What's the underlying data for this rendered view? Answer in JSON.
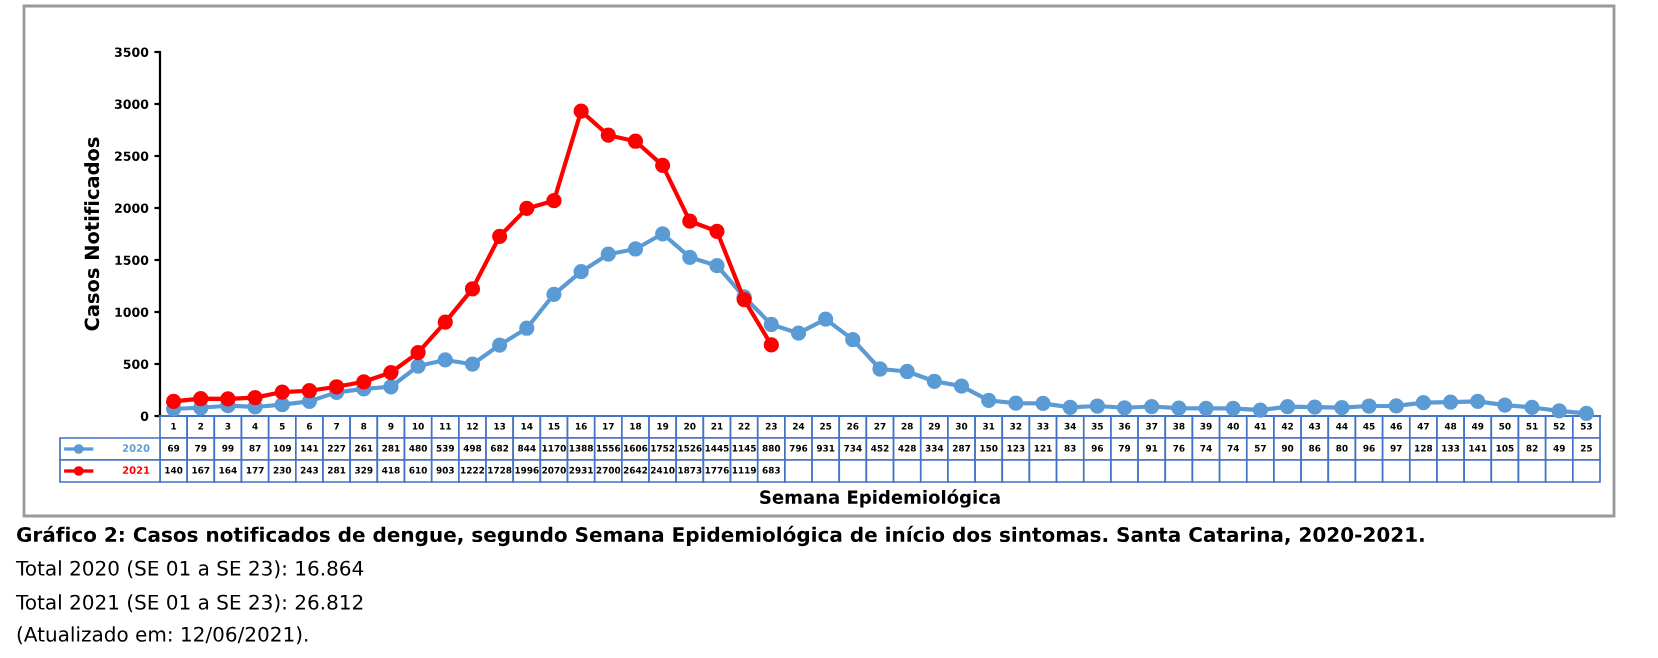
{
  "chart_data": {
    "type": "line",
    "xlabel": "Semana Epidemiológica",
    "ylabel": "Casos Notificados",
    "categories": [
      "1",
      "2",
      "3",
      "4",
      "5",
      "6",
      "7",
      "8",
      "9",
      "10",
      "11",
      "12",
      "13",
      "14",
      "15",
      "16",
      "17",
      "18",
      "19",
      "20",
      "21",
      "22",
      "23",
      "24",
      "25",
      "26",
      "27",
      "28",
      "29",
      "30",
      "31",
      "32",
      "33",
      "34",
      "35",
      "36",
      "37",
      "38",
      "39",
      "40",
      "41",
      "42",
      "43",
      "44",
      "45",
      "46",
      "47",
      "48",
      "49",
      "50",
      "51",
      "52",
      "53"
    ],
    "series": [
      {
        "name": "2020",
        "color": "#5b9bd5",
        "values": [
          69,
          79,
          99,
          87,
          109,
          141,
          227,
          261,
          281,
          480,
          539,
          498,
          682,
          844,
          1170,
          1388,
          1556,
          1606,
          1752,
          1526,
          1445,
          1145,
          880,
          796,
          931,
          734,
          452,
          428,
          334,
          287,
          150,
          123,
          121,
          83,
          96,
          79,
          91,
          76,
          74,
          74,
          57,
          90,
          86,
          80,
          96,
          97,
          128,
          133,
          141,
          105,
          82,
          49,
          25
        ]
      },
      {
        "name": "2021",
        "color": "#ff0000",
        "values": [
          140,
          167,
          164,
          177,
          230,
          243,
          281,
          329,
          418,
          610,
          903,
          1222,
          1728,
          1996,
          2070,
          2931,
          2700,
          2642,
          2410,
          1873,
          1776,
          1119,
          683,
          null,
          null,
          null,
          null,
          null,
          null,
          null,
          null,
          null,
          null,
          null,
          null,
          null,
          null,
          null,
          null,
          null,
          null,
          null,
          null,
          null,
          null,
          null,
          null,
          null,
          null,
          null,
          null,
          null,
          null
        ]
      }
    ],
    "ylim": [
      0,
      3500
    ],
    "yticks": [
      0,
      500,
      1000,
      1500,
      2000,
      2500,
      3000,
      3500
    ],
    "grid": false,
    "marker": "circle",
    "line_style": "solid",
    "legend": "bottom",
    "data_labels": true,
    "annotations": [
      "Gráfico 2: Casos notificados de dengue, segundo Semana Epidemiológica de início dos sintomas. Santa Catarina, 2020-2021.",
      "Total 2020 (SE 01 a SE 23): 16.864",
      "Total 2021 (SE 01 a SE 23): 26.812",
      "(Atualizado em: 12/06/2021)."
    ]
  }
}
